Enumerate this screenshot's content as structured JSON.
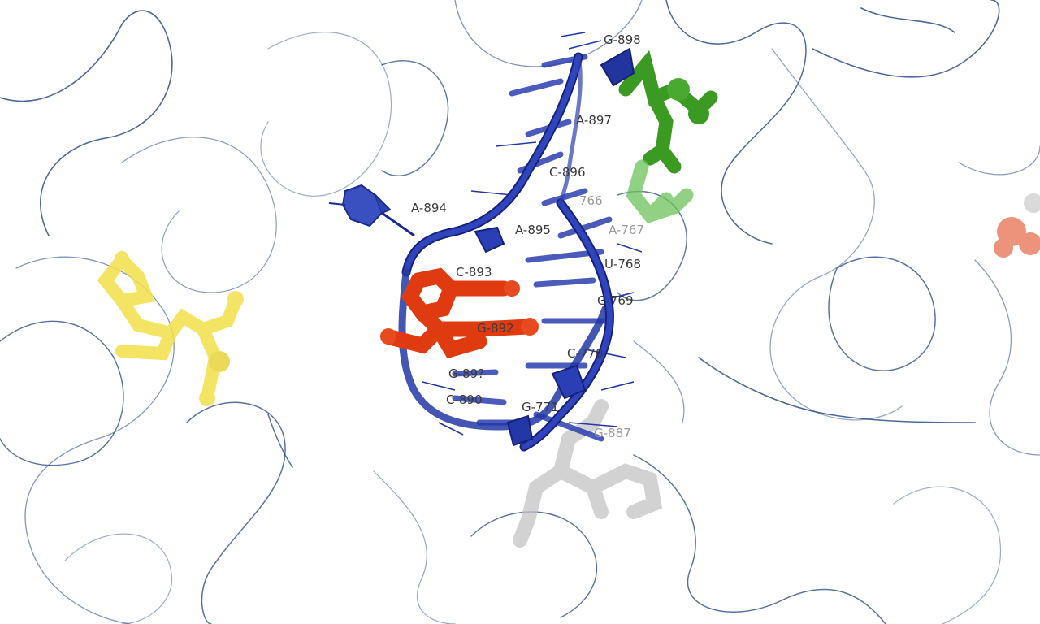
{
  "colors": {
    "background": "#ffffff",
    "helix": "#2237a8",
    "helix_dark": "#16227a",
    "background_strands": "#2e4f88",
    "ligand_red": "#e03a10",
    "ligand_green": "#3a9a22",
    "ligand_yellow": "#f2e04a",
    "ligand_gray": "#c4c4c4"
  },
  "residue_labels": {
    "g898": "G-898",
    "a897": "A-897",
    "c896": "C-896",
    "x766": "766",
    "a894": "A-894",
    "a895": "A-895",
    "a767": "A-767",
    "c893": "C-893",
    "u768": "U-768",
    "c769": "C-769",
    "g892": "G-892",
    "c770": "C-770",
    "g891": "G-89?",
    "c890": "C-890",
    "g771": "G-771",
    "g887": "G-887"
  }
}
